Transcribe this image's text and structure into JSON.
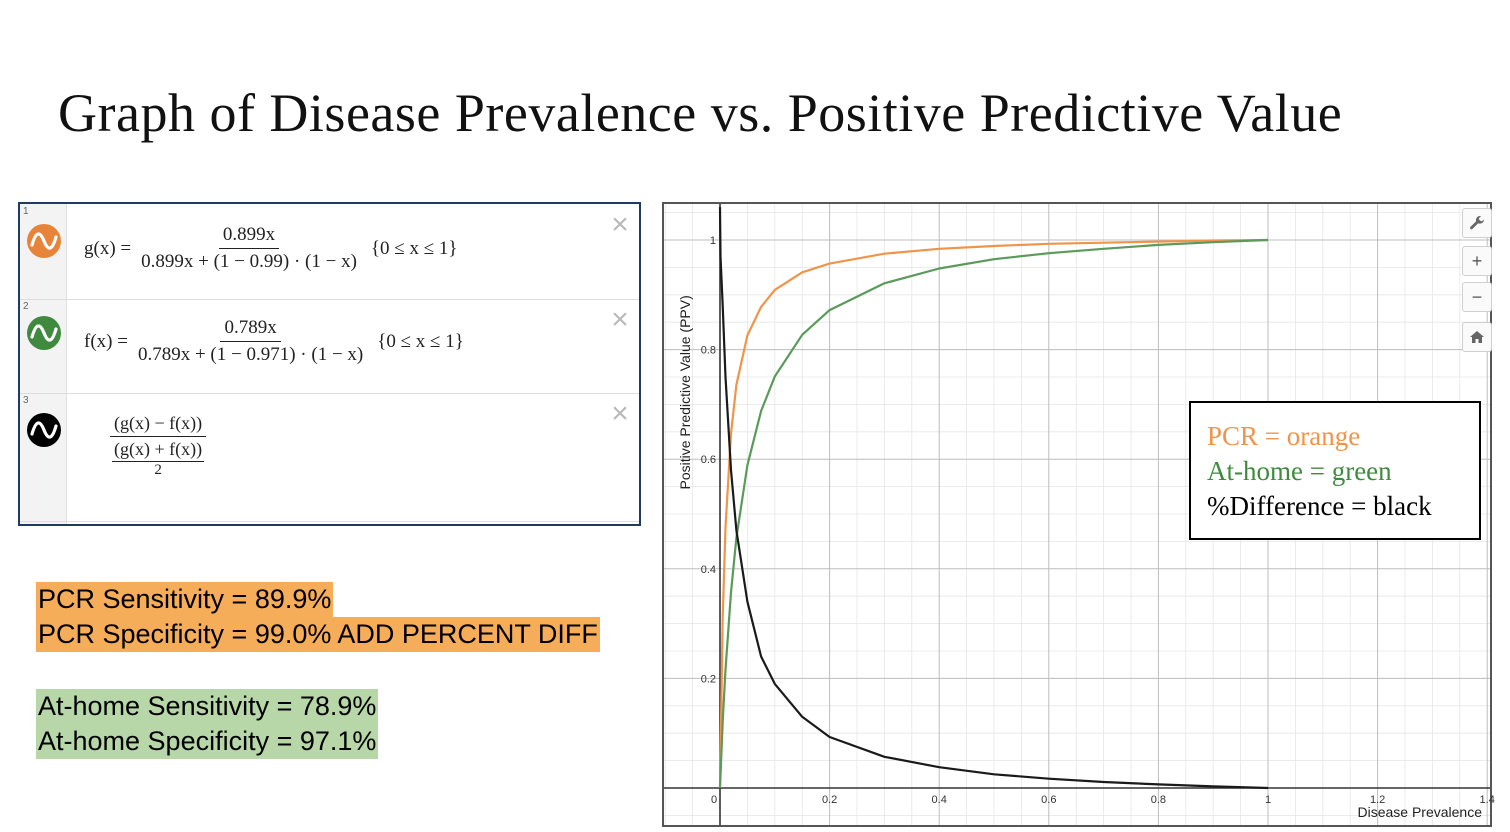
{
  "title": "Graph of Disease Prevalence vs. Positive Predictive Value",
  "expressions": [
    {
      "index": "1",
      "color": "#e8833a",
      "lhs": "g(x) =",
      "numerator": "0.899x",
      "denominator": "0.899x + (1 − 0.99) · (1 − x)",
      "domain": "{0 ≤ x ≤ 1}"
    },
    {
      "index": "2",
      "color": "#3f8a3f",
      "lhs": "f(x) =",
      "numerator": "0.789x",
      "denominator": "0.789x + (1 − 0.971) · (1 − x)",
      "domain": "{0 ≤ x ≤ 1}"
    },
    {
      "index": "3",
      "color": "#000000",
      "numerator": "(g(x) − f(x))",
      "denominator_top": "(g(x) + f(x))",
      "denominator_bottom": "2"
    }
  ],
  "delete_icon": "×",
  "notes": {
    "pcr_sensitivity": "PCR Sensitivity = 89.9%",
    "pcr_specificity": "PCR Specificity = 99.0% ADD PERCENT DIFF",
    "home_sensitivity": "At-home Sensitivity = 78.9%",
    "home_specificity": "At-home Specificity = 97.1%"
  },
  "legend": {
    "pcr": "PCR = orange",
    "home": "At-home = green",
    "diff": "%Difference = black"
  },
  "graph_controls": {
    "wrench_icon": "wrench-icon",
    "zoom_in": "+",
    "zoom_out": "−",
    "home_icon": "home-icon"
  },
  "chart_data": {
    "type": "line",
    "xlabel": "Disease Prevalence",
    "ylabel": "Positive Predictive Value (PPV)",
    "xlim": [
      -0.1,
      1.4
    ],
    "ylim": [
      -0.08,
      1.06
    ],
    "x_ticks": [
      "0",
      "0.2",
      "0.4",
      "0.6",
      "0.8",
      "1",
      "1.2",
      "1.4"
    ],
    "y_ticks": [
      "0.2",
      "0.4",
      "0.6",
      "0.8",
      "1"
    ],
    "grid": true,
    "series": [
      {
        "color": "#f0944a",
        "x": [
          0,
          0.005,
          0.01,
          0.02,
          0.03,
          0.05,
          0.075,
          0.1,
          0.15,
          0.2,
          0.3,
          0.4,
          0.5,
          0.6,
          0.7,
          0.8,
          0.9,
          1.0
        ],
        "y": [
          0,
          0.312,
          0.476,
          0.647,
          0.736,
          0.826,
          0.878,
          0.909,
          0.941,
          0.957,
          0.975,
          0.984,
          0.989,
          0.993,
          0.995,
          0.997,
          0.999,
          1.0
        ]
      },
      {
        "color": "#5a9a5a",
        "x": [
          0,
          0.005,
          0.01,
          0.02,
          0.03,
          0.05,
          0.075,
          0.1,
          0.15,
          0.2,
          0.3,
          0.4,
          0.5,
          0.6,
          0.7,
          0.8,
          0.9,
          1.0
        ],
        "y": [
          0,
          0.121,
          0.216,
          0.357,
          0.457,
          0.589,
          0.688,
          0.751,
          0.827,
          0.872,
          0.921,
          0.948,
          0.965,
          0.976,
          0.984,
          0.991,
          0.996,
          1.0
        ]
      },
      {
        "color": "#1a1a1a",
        "x": [
          0.001,
          0.005,
          0.01,
          0.02,
          0.03,
          0.05,
          0.075,
          0.1,
          0.15,
          0.2,
          0.3,
          0.4,
          0.5,
          0.6,
          0.7,
          0.8,
          0.9,
          1.0
        ],
        "y": [
          0.97,
          0.88,
          0.75,
          0.58,
          0.47,
          0.34,
          0.24,
          0.19,
          0.13,
          0.093,
          0.057,
          0.038,
          0.025,
          0.017,
          0.011,
          0.0065,
          0.003,
          0.0
        ]
      }
    ]
  }
}
